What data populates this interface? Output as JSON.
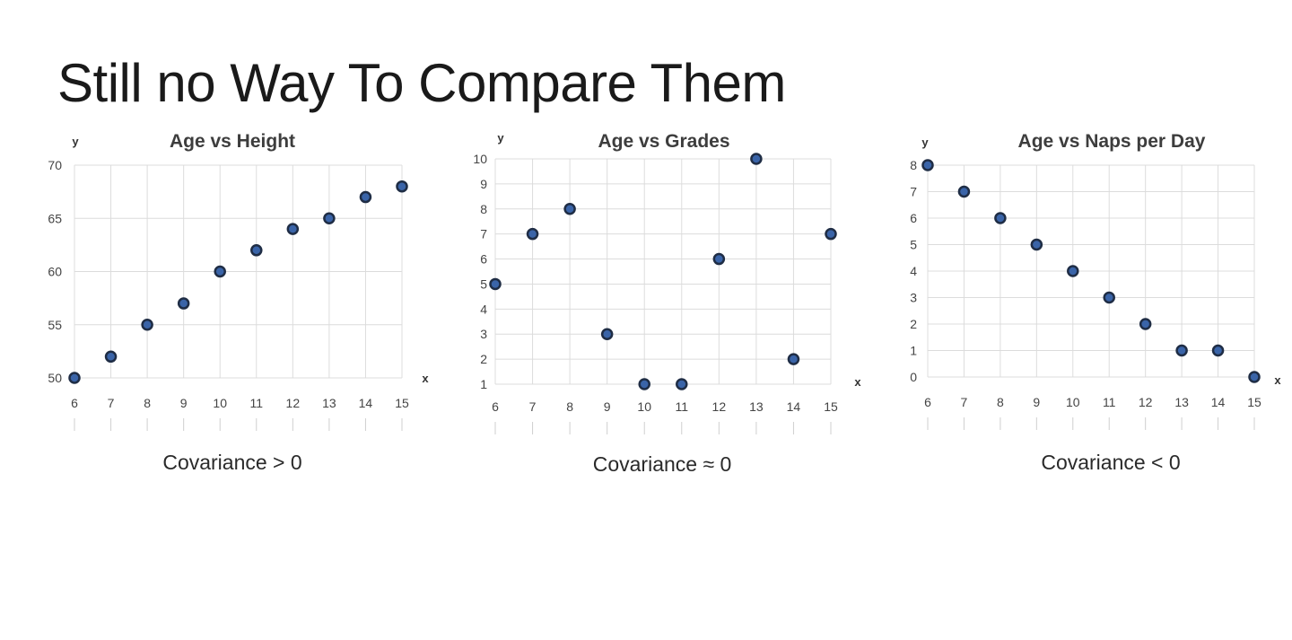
{
  "slide": {
    "title": "Still no Way To Compare Them"
  },
  "chart_data": [
    {
      "type": "scatter",
      "title": "Age vs Height",
      "xlabel": "x",
      "ylabel": "y",
      "x": [
        6,
        7,
        8,
        9,
        10,
        11,
        12,
        13,
        14,
        15
      ],
      "y": [
        50,
        52,
        55,
        57,
        60,
        62,
        64,
        65,
        67,
        68
      ],
      "xticks": [
        6,
        7,
        8,
        9,
        10,
        11,
        12,
        13,
        14,
        15
      ],
      "yticks": [
        50,
        55,
        60,
        65,
        70
      ],
      "xlim": [
        6,
        15
      ],
      "ylim": [
        50,
        70
      ],
      "grid": true,
      "caption": "Covariance > 0",
      "point_color": "#3a64a8"
    },
    {
      "type": "scatter",
      "title": "Age vs Grades",
      "xlabel": "x",
      "ylabel": "y",
      "x": [
        6,
        7,
        8,
        9,
        10,
        11,
        12,
        13,
        14,
        15
      ],
      "y": [
        5,
        7,
        8,
        3,
        1,
        1,
        6,
        10,
        2,
        7
      ],
      "xticks": [
        6,
        7,
        8,
        9,
        10,
        11,
        12,
        13,
        14,
        15
      ],
      "yticks": [
        1,
        2,
        3,
        4,
        5,
        6,
        7,
        8,
        9,
        10
      ],
      "xlim": [
        6,
        15
      ],
      "ylim": [
        1,
        10
      ],
      "grid": true,
      "caption": "Covariance ≈ 0",
      "point_color": "#3a64a8"
    },
    {
      "type": "scatter",
      "title": "Age vs Naps per Day",
      "xlabel": "x",
      "ylabel": "y",
      "x": [
        6,
        7,
        8,
        9,
        10,
        11,
        12,
        13,
        14,
        15
      ],
      "y": [
        8,
        7,
        6,
        5,
        4,
        3,
        2,
        1,
        1,
        0
      ],
      "xticks": [
        6,
        7,
        8,
        9,
        10,
        11,
        12,
        13,
        14,
        15
      ],
      "yticks": [
        0,
        1,
        2,
        3,
        4,
        5,
        6,
        7,
        8
      ],
      "xlim": [
        6,
        15
      ],
      "ylim": [
        0,
        8
      ],
      "grid": true,
      "caption": "Covariance < 0",
      "point_color": "#3a64a8"
    }
  ]
}
